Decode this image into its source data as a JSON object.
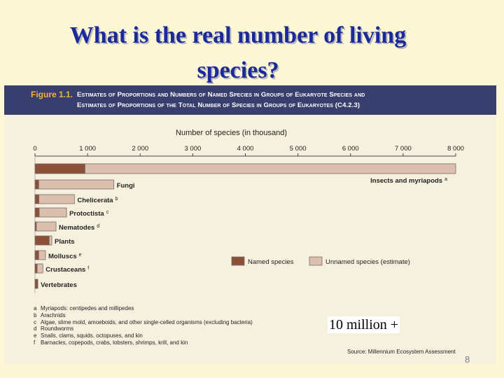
{
  "slide": {
    "title_line1": "What is the real number of living",
    "title_line2": "species?",
    "annotation": "10 million +",
    "page_number": "8"
  },
  "figure": {
    "label": "Figure 1.1.",
    "caption_line1": "Estimates of Proportions and Numbers of Named Species in Groups of Eukaryote Species and",
    "caption_line2": "Estimates of Proportions of the Total Number of Species in Groups of Eukaryotes (C4.2.3)",
    "source": "Source: Millennium Ecosystem Assessment",
    "footnotes": [
      {
        "letter": "a",
        "text": "Myriapods: centipedes and millipedes"
      },
      {
        "letter": "b",
        "text": "Arachnids"
      },
      {
        "letter": "c",
        "text": "Algae, slime mold, amoeboids, and other single-celled organisms (excluding bacteria)"
      },
      {
        "letter": "d",
        "text": "Roundworms"
      },
      {
        "letter": "e",
        "text": "Snails, clams, squids, octopuses, and kin"
      },
      {
        "letter": "f",
        "text": "Barnacles, copepods, crabs, lobsters, shrimps, krill, and kin"
      }
    ]
  },
  "colors": {
    "named": "#8a5038",
    "unnamed": "#dcbfae",
    "outline": "#7a6e68"
  },
  "chart_data": {
    "type": "bar",
    "orientation": "horizontal",
    "stacked": true,
    "xlabel": "Number of species (in thousand)",
    "xlim": [
      0,
      8000
    ],
    "ticks": [
      0,
      1000,
      2000,
      3000,
      4000,
      5000,
      6000,
      7000,
      8000
    ],
    "tick_labels": [
      "0",
      "1 000",
      "2 000",
      "3 000",
      "4 000",
      "5 000",
      "6 000",
      "7 000",
      "8 000"
    ],
    "legend": {
      "position": "center-right",
      "named": "Named species",
      "unnamed": "Unnamed species (estimate)"
    },
    "categories": [
      {
        "label": "Insects and myriapods",
        "sup": "a"
      },
      {
        "label": "Fungi",
        "sup": ""
      },
      {
        "label": "Chelicerata",
        "sup": "b"
      },
      {
        "label": "Protoctista",
        "sup": "c"
      },
      {
        "label": "Nematodes",
        "sup": "d"
      },
      {
        "label": "Plants",
        "sup": ""
      },
      {
        "label": "Molluscs",
        "sup": "e"
      },
      {
        "label": "Crustaceans",
        "sup": "f"
      },
      {
        "label": "Vertebrates",
        "sup": ""
      }
    ],
    "series": [
      {
        "name": "Named species",
        "values": [
          950,
          70,
          75,
          80,
          25,
          270,
          70,
          40,
          55
        ]
      },
      {
        "name": "Unnamed species (estimate)",
        "values": [
          7050,
          1430,
          675,
          520,
          375,
          50,
          130,
          110,
          0
        ]
      }
    ]
  }
}
